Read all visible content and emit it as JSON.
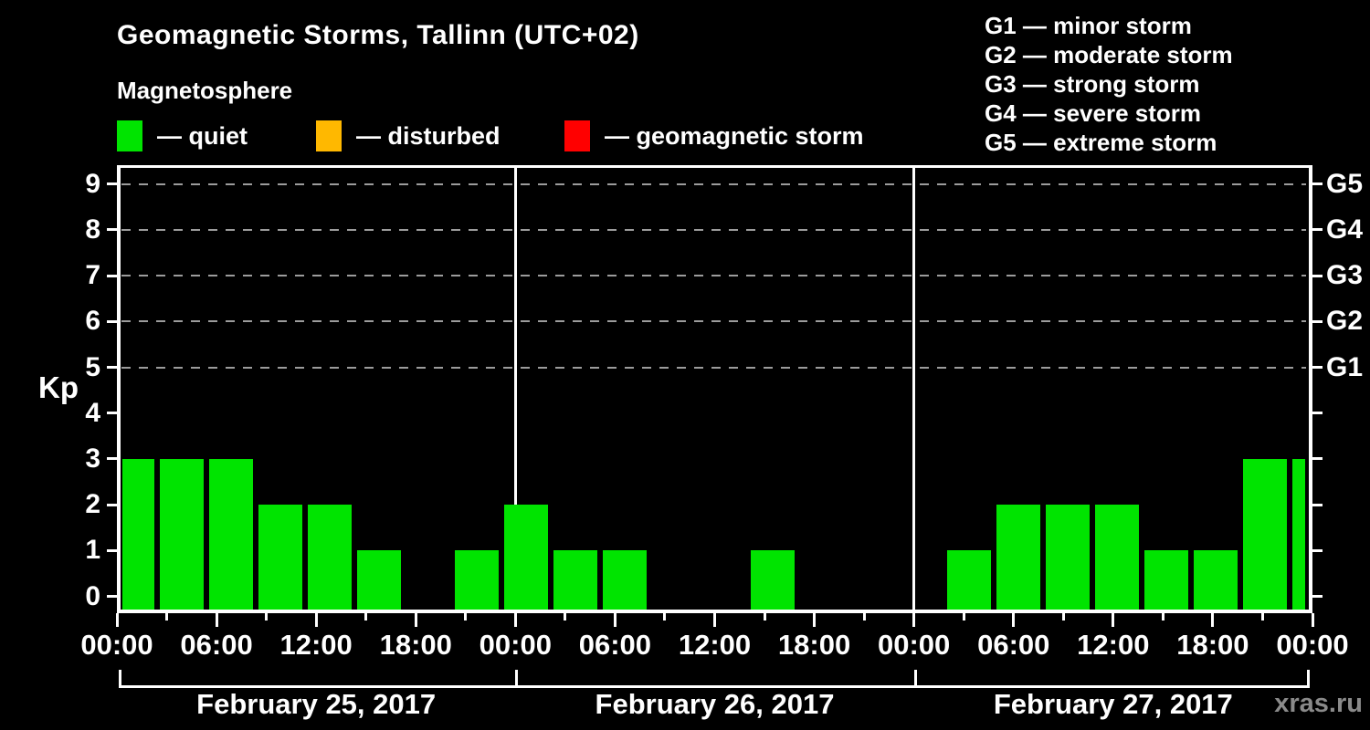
{
  "header": {
    "title": "Geomagnetic Storms, Tallinn (UTC+02)",
    "subtitle": "Magnetosphere"
  },
  "legend": {
    "items": [
      {
        "name": "quiet",
        "label": "— quiet",
        "color": "#00e400"
      },
      {
        "name": "disturbed",
        "label": "— disturbed",
        "color": "#ffb800"
      },
      {
        "name": "geomagnetic-storm",
        "label": "— geomagnetic storm",
        "color": "#ff0000"
      }
    ]
  },
  "g_legend": {
    "lines": [
      "G1 — minor storm",
      "G2 — moderate storm",
      "G3 — strong storm",
      "G4 — severe storm",
      "G5 — extreme storm"
    ]
  },
  "watermark": "xras.ru",
  "chart_data": {
    "type": "bar",
    "title": "Geomagnetic Storms, Tallinn (UTC+02)",
    "subtitle": "Magnetosphere",
    "location": "Tallinn",
    "utc_offset": "UTC+02",
    "ylabel": "Kp",
    "ylim": [
      0,
      9
    ],
    "yticks": [
      0,
      1,
      2,
      3,
      4,
      5,
      6,
      7,
      8,
      9
    ],
    "grid": "dashed horizontal gridlines at Kp 5-9",
    "grid_levels": [
      5,
      6,
      7,
      8,
      9
    ],
    "right_axis_labels": {
      "5": "G1",
      "6": "G2",
      "7": "G3",
      "8": "G4",
      "9": "G5"
    },
    "interval_hours": 3,
    "x_time_labels": [
      "00:00",
      "06:00",
      "12:00",
      "18:00"
    ],
    "legend_position": "top",
    "days": [
      {
        "date": "February 25, 2017",
        "values": [
          3,
          3,
          3,
          2,
          2,
          1,
          0,
          1
        ]
      },
      {
        "date": "February 26, 2017",
        "values": [
          2,
          1,
          1,
          0,
          0,
          1,
          0,
          0
        ]
      },
      {
        "date": "February 27, 2017",
        "values": [
          0,
          1,
          2,
          2,
          2,
          1,
          1,
          3
        ]
      }
    ],
    "next_day_partial_value": 3,
    "level_colors": {
      "quiet": "#00e400",
      "disturbed": "#ffb800",
      "storm": "#ff0000"
    },
    "grid_color": "#9c9c9c",
    "axis_color": "#ffffff"
  }
}
